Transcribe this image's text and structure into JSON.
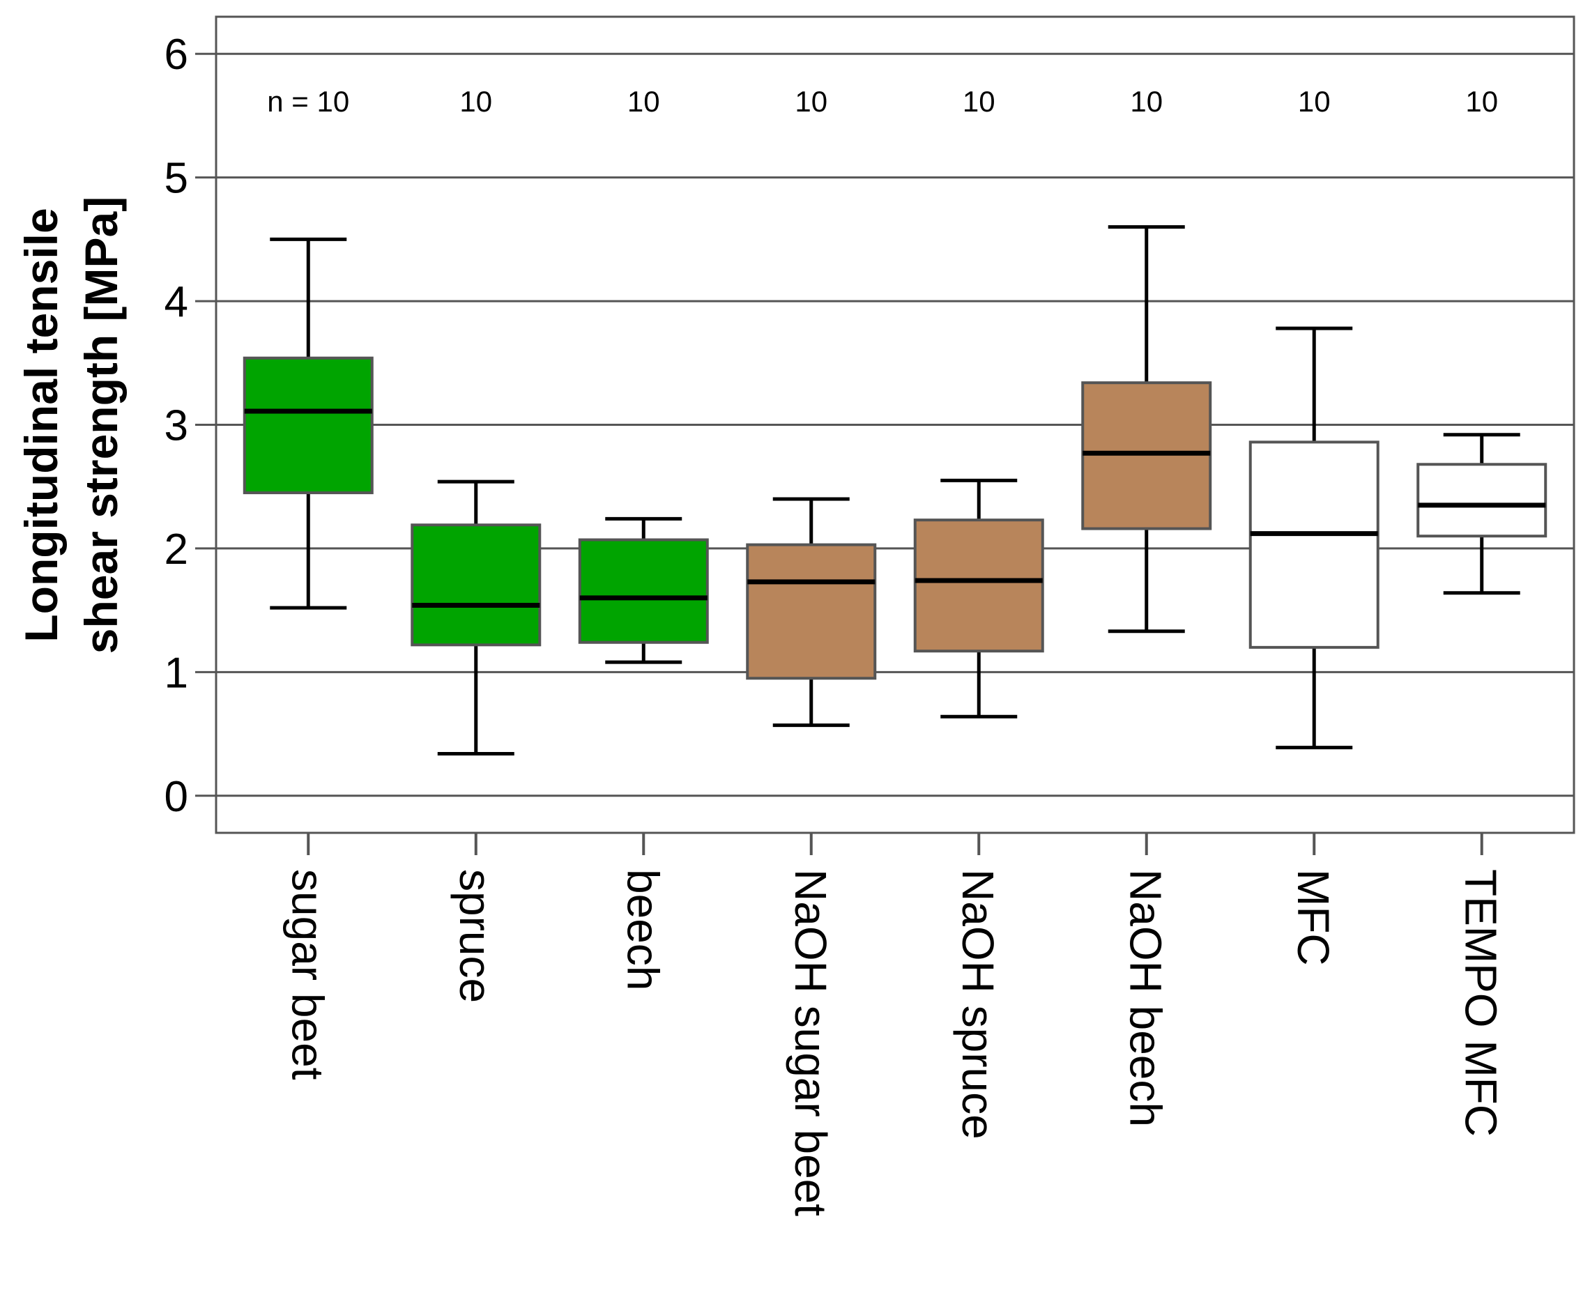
{
  "chart_data": {
    "type": "boxplot",
    "title": "",
    "xlabel": "",
    "ylabel_lines": [
      "Longitudinal tensile",
      "shear strength [MPa]"
    ],
    "ylim": [
      -0.3,
      6.3
    ],
    "yticks": [
      0,
      1,
      2,
      3,
      4,
      5,
      6
    ],
    "grid": true,
    "n_prefix": "n = ",
    "categories": [
      "sugar beet",
      "spruce",
      "beech",
      "NaOH sugar beet",
      "NaOH spruce",
      "NaOH beech",
      "MFC",
      "TEMPO MFC"
    ],
    "boxes": [
      {
        "name": "sugar beet",
        "n": "10",
        "whisker_low": 1.52,
        "q1": 2.45,
        "median": 3.11,
        "q3": 3.54,
        "whisker_high": 4.5,
        "color": "#00a400"
      },
      {
        "name": "spruce",
        "n": "10",
        "whisker_low": 0.34,
        "q1": 1.22,
        "median": 1.54,
        "q3": 2.19,
        "whisker_high": 2.54,
        "color": "#00a400"
      },
      {
        "name": "beech",
        "n": "10",
        "whisker_low": 1.08,
        "q1": 1.24,
        "median": 1.6,
        "q3": 2.07,
        "whisker_high": 2.24,
        "color": "#00a400"
      },
      {
        "name": "NaOH sugar beet",
        "n": "10",
        "whisker_low": 0.57,
        "q1": 0.95,
        "median": 1.73,
        "q3": 2.03,
        "whisker_high": 2.4,
        "color": "#b8855b"
      },
      {
        "name": "NaOH spruce",
        "n": "10",
        "whisker_low": 0.64,
        "q1": 1.17,
        "median": 1.74,
        "q3": 2.23,
        "whisker_high": 2.55,
        "color": "#b8855b"
      },
      {
        "name": "NaOH beech",
        "n": "10",
        "whisker_low": 1.33,
        "q1": 2.16,
        "median": 2.77,
        "q3": 3.34,
        "whisker_high": 4.6,
        "color": "#b8855b"
      },
      {
        "name": "MFC",
        "n": "10",
        "whisker_low": 0.39,
        "q1": 1.2,
        "median": 2.12,
        "q3": 2.86,
        "whisker_high": 3.78,
        "color": "#ffffff"
      },
      {
        "name": "TEMPO MFC",
        "n": "10",
        "whisker_low": 1.64,
        "q1": 2.1,
        "median": 2.35,
        "q3": 2.68,
        "whisker_high": 2.92,
        "color": "#ffffff"
      }
    ]
  }
}
